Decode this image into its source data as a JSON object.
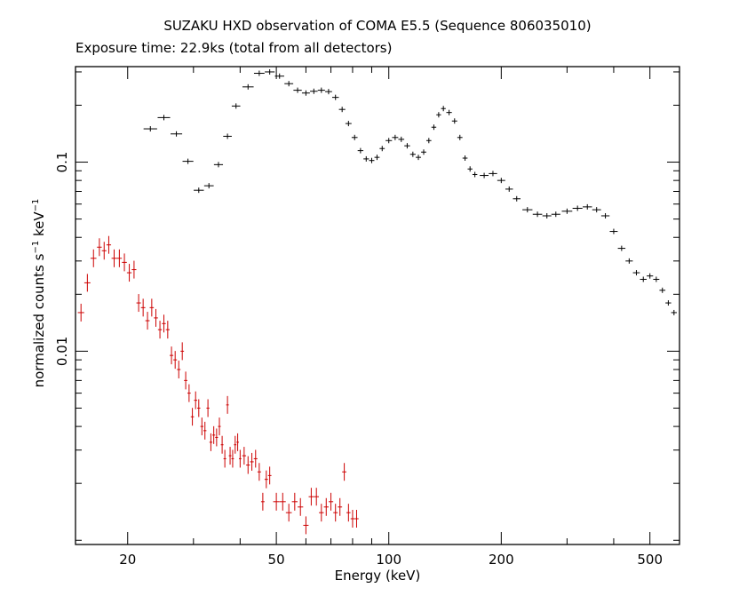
{
  "chart_data": {
    "type": "scatter",
    "title": "SUZAKU HXD observation of COMA E5.5 (Sequence 806035010)",
    "subtitle": "Exposure time: 22.9ks (total from all detectors)",
    "xlabel": "Energy (keV)",
    "ylabel": {
      "prefix": "normalized counts s",
      "exp1": "−1",
      "mid": " keV",
      "exp2": "−1"
    },
    "xscale": "log",
    "yscale": "log",
    "xlim": [
      14.5,
      600
    ],
    "ylim": [
      0.00095,
      0.32
    ],
    "xticks": [
      {
        "value": 20,
        "label": "20"
      },
      {
        "value": 50,
        "label": "50"
      },
      {
        "value": 100,
        "label": "100"
      },
      {
        "value": 200,
        "label": "200"
      },
      {
        "value": 500,
        "label": "500"
      }
    ],
    "yticks": [
      {
        "value": 0.01,
        "label": "0.01"
      },
      {
        "value": 0.1,
        "label": "0.1"
      }
    ],
    "grid": false,
    "series": [
      {
        "color": "#000000",
        "points": [
          [
            23,
            0.15
          ],
          [
            25,
            0.172
          ],
          [
            27,
            0.141
          ],
          [
            29,
            0.101
          ],
          [
            31,
            0.071
          ],
          [
            33,
            0.075
          ],
          [
            35,
            0.097
          ],
          [
            37,
            0.137
          ],
          [
            39,
            0.198
          ],
          [
            42,
            0.25
          ],
          [
            45,
            0.295
          ],
          [
            48,
            0.3
          ],
          [
            51,
            0.285
          ],
          [
            54,
            0.26
          ],
          [
            57,
            0.24
          ],
          [
            60,
            0.232
          ],
          [
            63,
            0.237
          ],
          [
            66,
            0.24
          ],
          [
            69,
            0.236
          ],
          [
            72,
            0.22
          ],
          [
            75,
            0.19
          ],
          [
            78,
            0.16
          ],
          [
            81,
            0.135
          ],
          [
            84,
            0.115
          ],
          [
            87,
            0.104
          ],
          [
            90,
            0.102
          ],
          [
            93,
            0.106
          ],
          [
            96,
            0.118
          ],
          [
            100,
            0.13
          ],
          [
            104,
            0.135
          ],
          [
            108,
            0.132
          ],
          [
            112,
            0.122
          ],
          [
            116,
            0.11
          ],
          [
            120,
            0.106
          ],
          [
            124,
            0.113
          ],
          [
            128,
            0.13
          ],
          [
            132,
            0.153
          ],
          [
            136,
            0.178
          ],
          [
            140,
            0.192
          ],
          [
            145,
            0.183
          ],
          [
            150,
            0.165
          ],
          [
            155,
            0.135
          ],
          [
            160,
            0.105
          ],
          [
            165,
            0.092
          ],
          [
            170,
            0.086
          ],
          [
            180,
            0.085
          ],
          [
            190,
            0.087
          ],
          [
            200,
            0.08
          ],
          [
            210,
            0.072
          ],
          [
            220,
            0.064
          ],
          [
            235,
            0.056
          ],
          [
            250,
            0.053
          ],
          [
            265,
            0.052
          ],
          [
            280,
            0.053
          ],
          [
            300,
            0.055
          ],
          [
            320,
            0.057
          ],
          [
            340,
            0.058
          ],
          [
            360,
            0.056
          ],
          [
            380,
            0.052
          ],
          [
            400,
            0.043
          ],
          [
            420,
            0.035
          ],
          [
            440,
            0.03
          ],
          [
            460,
            0.026
          ],
          [
            480,
            0.024
          ],
          [
            500,
            0.025
          ],
          [
            520,
            0.024
          ],
          [
            540,
            0.021
          ],
          [
            560,
            0.018
          ],
          [
            580,
            0.016
          ]
        ]
      },
      {
        "color": "#cc0000",
        "points": [
          [
            15.0,
            0.016
          ],
          [
            15.6,
            0.023
          ],
          [
            16.2,
            0.031
          ],
          [
            16.8,
            0.0355
          ],
          [
            17.3,
            0.034
          ],
          [
            17.8,
            0.0365
          ],
          [
            18.4,
            0.031
          ],
          [
            19.0,
            0.031
          ],
          [
            19.6,
            0.0295
          ],
          [
            20.2,
            0.026
          ],
          [
            20.8,
            0.027
          ],
          [
            21.4,
            0.018
          ],
          [
            22.0,
            0.017
          ],
          [
            22.6,
            0.0145
          ],
          [
            23.2,
            0.017
          ],
          [
            23.8,
            0.015
          ],
          [
            24.4,
            0.013
          ],
          [
            25.0,
            0.014
          ],
          [
            25.6,
            0.013
          ],
          [
            26.2,
            0.0095
          ],
          [
            26.8,
            0.009
          ],
          [
            27.4,
            0.008
          ],
          [
            28.0,
            0.01
          ],
          [
            28.6,
            0.007
          ],
          [
            29.2,
            0.006
          ],
          [
            29.8,
            0.0045
          ],
          [
            30.4,
            0.0055
          ],
          [
            31.0,
            0.005
          ],
          [
            31.6,
            0.004
          ],
          [
            32.2,
            0.0038
          ],
          [
            32.8,
            0.005
          ],
          [
            33.4,
            0.0033
          ],
          [
            34.0,
            0.0036
          ],
          [
            34.6,
            0.0035
          ],
          [
            35.2,
            0.004
          ],
          [
            35.8,
            0.0032
          ],
          [
            36.4,
            0.0027
          ],
          [
            37.0,
            0.0052
          ],
          [
            37.6,
            0.0028
          ],
          [
            38.2,
            0.0027
          ],
          [
            38.8,
            0.0032
          ],
          [
            39.4,
            0.0033
          ],
          [
            40.0,
            0.0027
          ],
          [
            41.0,
            0.0028
          ],
          [
            42.0,
            0.0025
          ],
          [
            43.0,
            0.0026
          ],
          [
            44.0,
            0.0027
          ],
          [
            45.0,
            0.0023
          ],
          [
            46.0,
            0.0016
          ],
          [
            47.0,
            0.0021
          ],
          [
            48.0,
            0.0022
          ],
          [
            50.0,
            0.0016
          ],
          [
            52.0,
            0.0016
          ],
          [
            54.0,
            0.0014
          ],
          [
            56.0,
            0.0016
          ],
          [
            58.0,
            0.0015
          ],
          [
            60.0,
            0.0012
          ],
          [
            62.0,
            0.0017
          ],
          [
            64.0,
            0.0017
          ],
          [
            66.0,
            0.0014
          ],
          [
            68.0,
            0.0015
          ],
          [
            70.0,
            0.0016
          ],
          [
            72.0,
            0.0014
          ],
          [
            74.0,
            0.0015
          ],
          [
            76.0,
            0.0023
          ],
          [
            78.0,
            0.0014
          ],
          [
            80.0,
            0.0013
          ],
          [
            82.0,
            0.0013
          ]
        ]
      }
    ]
  }
}
